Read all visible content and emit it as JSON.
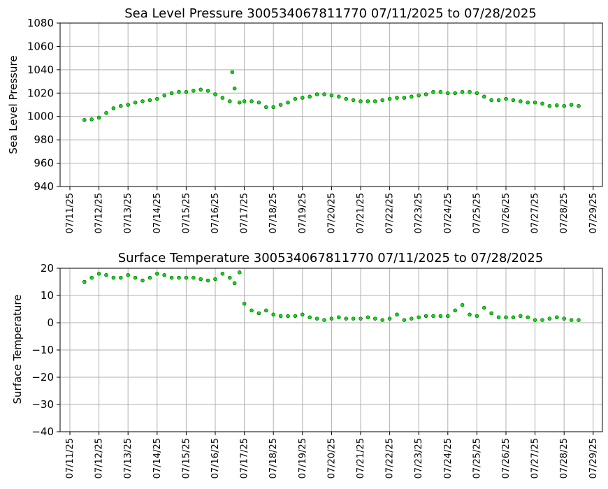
{
  "chart_data": [
    {
      "type": "scatter",
      "title": "Sea Level Pressure 300534067811770  07/11/2025 to 07/28/2025",
      "xlabel": "",
      "ylabel": "Sea Level Pressure",
      "ylim": [
        940,
        1080
      ],
      "yticks": [
        "940",
        "960",
        "980",
        "1000",
        "1020",
        "1040",
        "1060",
        "1080"
      ],
      "xticks": [
        "07/11/25",
        "07/12/25",
        "07/13/25",
        "07/14/25",
        "07/15/25",
        "07/16/25",
        "07/17/25",
        "07/18/25",
        "07/19/25",
        "07/20/25",
        "07/21/25",
        "07/22/25",
        "07/23/25",
        "07/24/25",
        "07/25/25",
        "07/26/25",
        "07/27/25",
        "07/28/25",
        "07/29/25"
      ],
      "grid": true,
      "marker_color": "#00e600",
      "marker_edge": "#004d00",
      "series": [
        {
          "x": [
            "07/11/25 12:00",
            "07/11/25 18:00",
            "07/12/25 00:00",
            "07/12/25 06:00",
            "07/12/25 12:00",
            "07/12/25 18:00",
            "07/13/25 00:00",
            "07/13/25 06:00",
            "07/13/25 12:00",
            "07/13/25 18:00",
            "07/14/25 00:00",
            "07/14/25 06:00",
            "07/14/25 12:00",
            "07/14/25 18:00",
            "07/15/25 00:00",
            "07/15/25 06:00",
            "07/15/25 12:00",
            "07/15/25 18:00",
            "07/16/25 00:00",
            "07/16/25 06:00",
            "07/16/25 12:00",
            "07/16/25 14:00",
            "07/16/25 16:00",
            "07/16/25 20:00",
            "07/17/25 00:00",
            "07/17/25 06:00",
            "07/17/25 12:00",
            "07/17/25 18:00",
            "07/18/25 00:00",
            "07/18/25 06:00",
            "07/18/25 12:00",
            "07/18/25 18:00",
            "07/19/25 00:00",
            "07/19/25 06:00",
            "07/19/25 12:00",
            "07/19/25 18:00",
            "07/20/25 00:00",
            "07/20/25 06:00",
            "07/20/25 12:00",
            "07/20/25 18:00",
            "07/21/25 00:00",
            "07/21/25 06:00",
            "07/21/25 12:00",
            "07/21/25 18:00",
            "07/22/25 00:00",
            "07/22/25 06:00",
            "07/22/25 12:00",
            "07/22/25 18:00",
            "07/23/25 00:00",
            "07/23/25 06:00",
            "07/23/25 12:00",
            "07/23/25 18:00",
            "07/24/25 00:00",
            "07/24/25 06:00",
            "07/24/25 12:00",
            "07/24/25 18:00",
            "07/25/25 00:00",
            "07/25/25 06:00",
            "07/25/25 12:00",
            "07/25/25 18:00",
            "07/26/25 00:00",
            "07/26/25 06:00",
            "07/26/25 12:00",
            "07/26/25 18:00",
            "07/27/25 00:00",
            "07/27/25 06:00",
            "07/27/25 12:00",
            "07/27/25 18:00",
            "07/28/25 00:00",
            "07/28/25 06:00",
            "07/28/25 12:00"
          ],
          "y": [
            997,
            997.5,
            999,
            1003,
            1007,
            1009,
            1010,
            1012,
            1013,
            1014,
            1015,
            1018,
            1020,
            1021,
            1021,
            1022,
            1023,
            1022,
            1019,
            1016,
            1013,
            1038,
            1024,
            1012,
            1013,
            1013,
            1012,
            1008,
            1008,
            1010,
            1012,
            1015,
            1016,
            1017,
            1019,
            1019,
            1018,
            1017,
            1015,
            1014,
            1013,
            1013,
            1013,
            1014,
            1015,
            1016,
            1016,
            1017,
            1018,
            1019,
            1021,
            1021,
            1020,
            1020,
            1021,
            1021,
            1020,
            1017,
            1014,
            1014,
            1015,
            1014,
            1013,
            1012,
            1012,
            1011,
            1009,
            1009.5,
            1009,
            1010,
            1009
          ]
        }
      ]
    },
    {
      "type": "scatter",
      "title": "Surface Temperature 300534067811770  07/11/2025 to 07/28/2025",
      "xlabel": "",
      "ylabel": "Surface Temperature",
      "ylim": [
        -40,
        20
      ],
      "yticks": [
        "−40",
        "−30",
        "−20",
        "−10",
        "0",
        "10",
        "20"
      ],
      "xticks": [
        "07/11/25",
        "07/12/25",
        "07/13/25",
        "07/14/25",
        "07/15/25",
        "07/16/25",
        "07/17/25",
        "07/18/25",
        "07/19/25",
        "07/20/25",
        "07/21/25",
        "07/22/25",
        "07/23/25",
        "07/24/25",
        "07/25/25",
        "07/26/25",
        "07/27/25",
        "07/28/25",
        "07/29/25"
      ],
      "grid": true,
      "marker_color": "#00e600",
      "marker_edge": "#004d00",
      "series": [
        {
          "x": [
            "07/11/25 12:00",
            "07/11/25 18:00",
            "07/12/25 00:00",
            "07/12/25 06:00",
            "07/12/25 12:00",
            "07/12/25 18:00",
            "07/13/25 00:00",
            "07/13/25 06:00",
            "07/13/25 12:00",
            "07/13/25 18:00",
            "07/14/25 00:00",
            "07/14/25 06:00",
            "07/14/25 12:00",
            "07/14/25 18:00",
            "07/15/25 00:00",
            "07/15/25 06:00",
            "07/15/25 12:00",
            "07/15/25 18:00",
            "07/16/25 00:00",
            "07/16/25 06:00",
            "07/16/25 12:00",
            "07/16/25 16:00",
            "07/16/25 20:00",
            "07/17/25 00:00",
            "07/17/25 06:00",
            "07/17/25 12:00",
            "07/17/25 18:00",
            "07/18/25 00:00",
            "07/18/25 06:00",
            "07/18/25 12:00",
            "07/18/25 18:00",
            "07/19/25 00:00",
            "07/19/25 06:00",
            "07/19/25 12:00",
            "07/19/25 18:00",
            "07/20/25 00:00",
            "07/20/25 06:00",
            "07/20/25 12:00",
            "07/20/25 18:00",
            "07/21/25 00:00",
            "07/21/25 06:00",
            "07/21/25 12:00",
            "07/21/25 18:00",
            "07/22/25 00:00",
            "07/22/25 06:00",
            "07/22/25 12:00",
            "07/22/25 18:00",
            "07/23/25 00:00",
            "07/23/25 06:00",
            "07/23/25 12:00",
            "07/23/25 18:00",
            "07/24/25 00:00",
            "07/24/25 06:00",
            "07/24/25 12:00",
            "07/24/25 18:00",
            "07/25/25 00:00",
            "07/25/25 06:00",
            "07/25/25 12:00",
            "07/25/25 18:00",
            "07/26/25 00:00",
            "07/26/25 06:00",
            "07/26/25 12:00",
            "07/26/25 18:00",
            "07/27/25 00:00",
            "07/27/25 06:00",
            "07/27/25 12:00",
            "07/27/25 18:00",
            "07/28/25 00:00",
            "07/28/25 06:00",
            "07/28/25 12:00"
          ],
          "y": [
            15,
            16.5,
            18,
            17.5,
            16.5,
            16.5,
            17.5,
            16.5,
            15.5,
            16.5,
            18,
            17.5,
            16.5,
            16.5,
            16.5,
            16.5,
            16,
            15.5,
            16,
            18,
            16.5,
            14.5,
            18.5,
            7,
            4.5,
            3.5,
            4.5,
            3,
            2.5,
            2.5,
            2.5,
            3,
            2,
            1.5,
            1,
            1.5,
            2,
            1.5,
            1.5,
            1.5,
            2,
            1.5,
            1,
            1.5,
            3,
            1,
            1.5,
            2,
            2.5,
            2.5,
            2.5,
            2.5,
            4.5,
            6.5,
            3,
            2.5,
            5.5,
            3.5,
            2,
            2,
            2,
            2.5,
            2,
            1,
            1,
            1.5,
            2,
            1.5,
            1,
            1
          ]
        }
      ]
    }
  ]
}
